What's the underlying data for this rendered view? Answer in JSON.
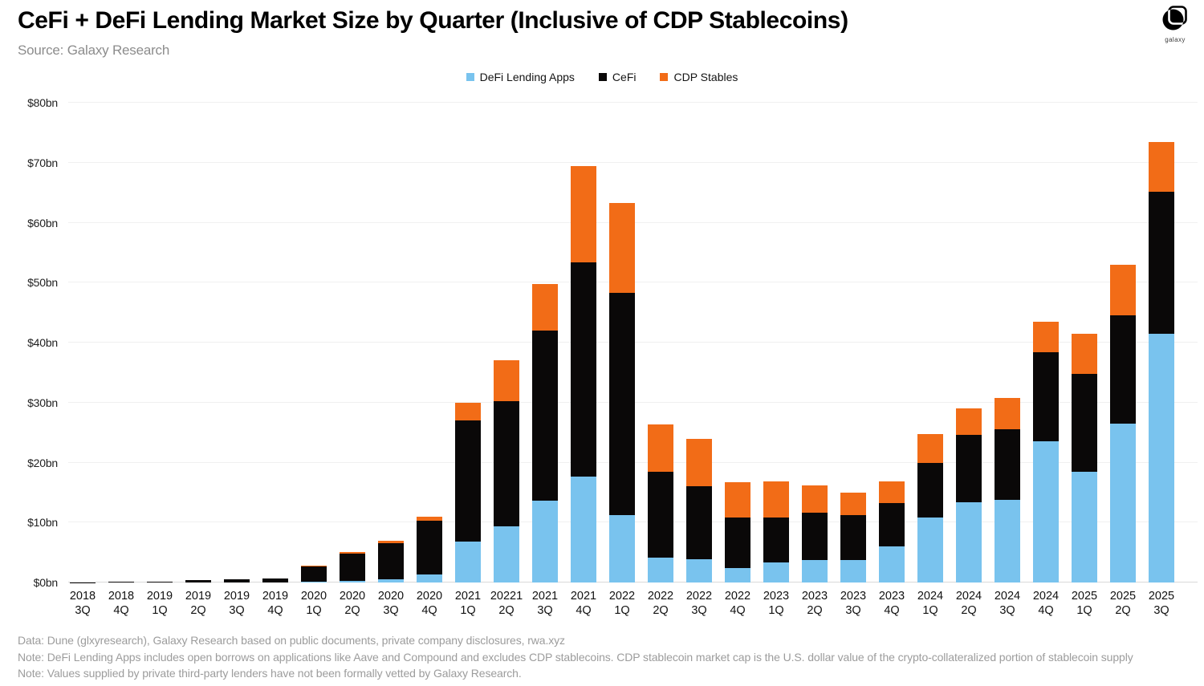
{
  "header": {
    "title": "CeFi + DeFi Lending Market Size by Quarter (Inclusive of CDP Stablecoins)",
    "source": "Source: Galaxy Research",
    "logo_text": "galaxy"
  },
  "chart_data": {
    "type": "bar",
    "stacked": true,
    "title": "CeFi + DeFi Lending Market Size by Quarter (Inclusive of CDP Stablecoins)",
    "xlabel": "",
    "ylabel": "",
    "ylim": [
      0,
      80
    ],
    "grid": true,
    "legend_position": "top",
    "y_ticks": [
      "$0bn",
      "$10bn",
      "$20bn",
      "$30bn",
      "$40bn",
      "$50bn",
      "$60bn",
      "$70bn",
      "$80bn"
    ],
    "categories": [
      {
        "year": "2018",
        "quarter": "3Q"
      },
      {
        "year": "2018",
        "quarter": "4Q"
      },
      {
        "year": "2019",
        "quarter": "1Q"
      },
      {
        "year": "2019",
        "quarter": "2Q"
      },
      {
        "year": "2019",
        "quarter": "3Q"
      },
      {
        "year": "2019",
        "quarter": "4Q"
      },
      {
        "year": "2020",
        "quarter": "1Q"
      },
      {
        "year": "2020",
        "quarter": "2Q"
      },
      {
        "year": "2020",
        "quarter": "3Q"
      },
      {
        "year": "2020",
        "quarter": "4Q"
      },
      {
        "year": "2021",
        "quarter": "1Q"
      },
      {
        "year": "20221",
        "quarter": "2Q"
      },
      {
        "year": "2021",
        "quarter": "3Q"
      },
      {
        "year": "2021",
        "quarter": "4Q"
      },
      {
        "year": "2022",
        "quarter": "1Q"
      },
      {
        "year": "2022",
        "quarter": "2Q"
      },
      {
        "year": "2022",
        "quarter": "3Q"
      },
      {
        "year": "2022",
        "quarter": "4Q"
      },
      {
        "year": "2023",
        "quarter": "1Q"
      },
      {
        "year": "2023",
        "quarter": "2Q"
      },
      {
        "year": "2023",
        "quarter": "3Q"
      },
      {
        "year": "2023",
        "quarter": "4Q"
      },
      {
        "year": "2024",
        "quarter": "1Q"
      },
      {
        "year": "2024",
        "quarter": "2Q"
      },
      {
        "year": "2024",
        "quarter": "3Q"
      },
      {
        "year": "2024",
        "quarter": "4Q"
      },
      {
        "year": "2025",
        "quarter": "1Q"
      },
      {
        "year": "2025",
        "quarter": "2Q"
      },
      {
        "year": "2025",
        "quarter": "3Q"
      }
    ],
    "series": [
      {
        "name": "DeFi Lending Apps",
        "color": "#79c3ee",
        "values": [
          0,
          0,
          0,
          0,
          0,
          0,
          0.1,
          0.3,
          0.6,
          1.3,
          6.8,
          9.3,
          13.7,
          17.6,
          11.2,
          4.2,
          3.9,
          2.4,
          3.3,
          3.7,
          3.7,
          6.0,
          10.9,
          13.4,
          13.8,
          23.5,
          18.5,
          26.5,
          41.5
        ]
      },
      {
        "name": "CeFi",
        "color": "#0a0808",
        "values": [
          0.03,
          0.08,
          0.2,
          0.45,
          0.5,
          0.65,
          2.6,
          4.5,
          5.9,
          9.0,
          20.2,
          20.9,
          28.3,
          35.8,
          37.1,
          14.2,
          12.2,
          8.4,
          7.5,
          8.0,
          7.5,
          7.2,
          9.0,
          11.2,
          11.8,
          14.9,
          16.3,
          18.0,
          23.7
        ]
      },
      {
        "name": "CDP Stables",
        "color": "#f26c17",
        "values": [
          0,
          0,
          0,
          0,
          0,
          0,
          0.1,
          0.3,
          0.5,
          0.7,
          3.0,
          6.8,
          7.8,
          16.0,
          15.0,
          7.9,
          7.8,
          5.9,
          6.1,
          4.5,
          3.8,
          3.6,
          4.9,
          4.4,
          5.2,
          5.1,
          6.7,
          8.5,
          8.2
        ]
      }
    ]
  },
  "footnotes": [
    "Data: Dune (glxyresearch), Galaxy Research based on public documents, private company disclosures, rwa.xyz",
    "Note: DeFi Lending Apps includes open borrows on applications like Aave and Compound and excludes CDP stablecoins. CDP stablecoin market cap is the U.S. dollar value of the crypto-collateralized portion of stablecoin supply",
    "Note: Values supplied by private third-party lenders have not been formally vetted  by Galaxy Research."
  ]
}
